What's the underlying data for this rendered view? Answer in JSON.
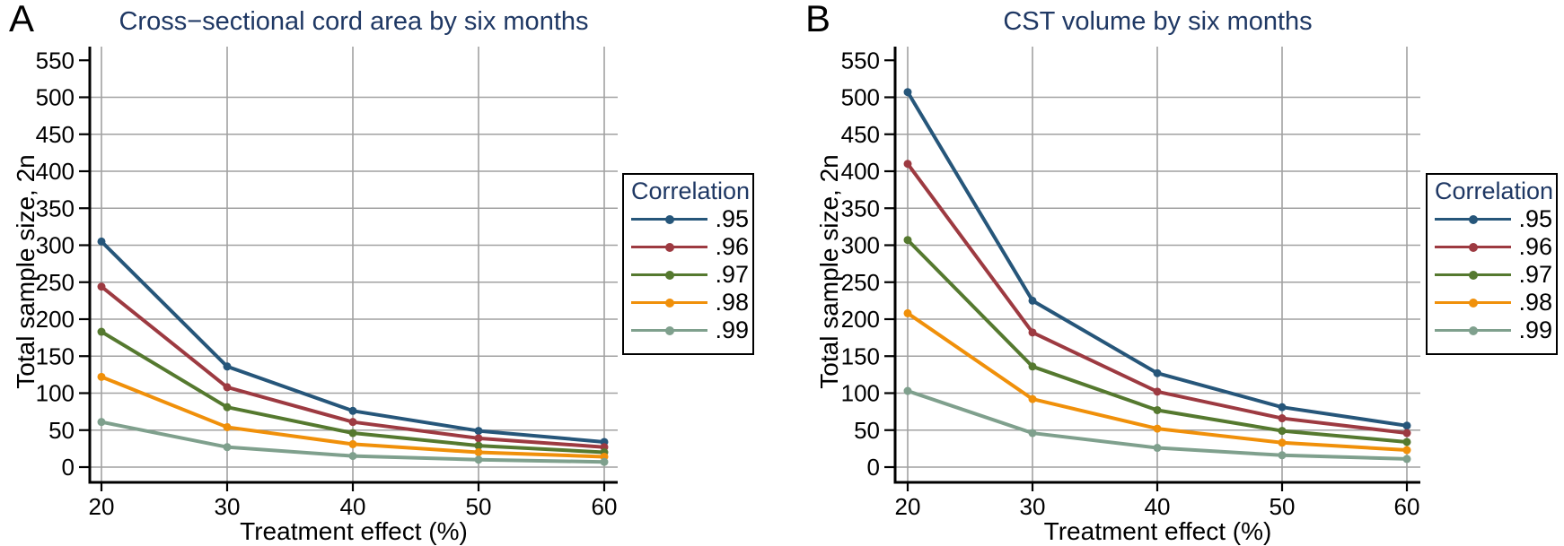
{
  "figure": {
    "background": "#ffffff"
  },
  "colors": {
    "title_navy": "#1f3864",
    "grid": "#a1a1a1",
    "axis": "#000000",
    "tick_label": "#000000"
  },
  "chart_data": [
    {
      "panel_label": "A",
      "type": "line",
      "title": "Cross−sectional cord area by six months",
      "xlabel": "Treatment effect (%)",
      "ylabel": "Total sample size, 2n",
      "x": [
        20,
        30,
        40,
        50,
        60
      ],
      "x_ticks": [
        "20",
        "30",
        "40",
        "50",
        "60"
      ],
      "y_ticks": [
        "0",
        "50",
        "100",
        "150",
        "200",
        "250",
        "300",
        "350",
        "400",
        "450",
        "500",
        "550"
      ],
      "xlim": [
        20,
        60
      ],
      "ylim": [
        0,
        568
      ],
      "grid": true,
      "legend": {
        "title": "Correlation",
        "position": "right-outside"
      },
      "series": [
        {
          "name": ".95",
          "color": "#26567a",
          "marker": "circle",
          "values": [
            305,
            136,
            76,
            49,
            34
          ]
        },
        {
          "name": ".96",
          "color": "#9d3a41",
          "marker": "circle",
          "values": [
            244,
            108,
            61,
            39,
            27
          ]
        },
        {
          "name": ".97",
          "color": "#55792f",
          "marker": "circle",
          "values": [
            183,
            81,
            46,
            29,
            20
          ]
        },
        {
          "name": ".98",
          "color": "#f0900a",
          "marker": "circle",
          "values": [
            122,
            54,
            31,
            20,
            14
          ]
        },
        {
          "name": ".99",
          "color": "#7fa08d",
          "marker": "circle",
          "values": [
            61,
            27,
            15,
            10,
            7
          ]
        }
      ]
    },
    {
      "panel_label": "B",
      "type": "line",
      "title": "CST volume by six months",
      "xlabel": "Treatment effect (%)",
      "ylabel": "Total sample size, 2n",
      "x": [
        20,
        30,
        40,
        50,
        60
      ],
      "x_ticks": [
        "20",
        "30",
        "40",
        "50",
        "60"
      ],
      "y_ticks": [
        "0",
        "50",
        "100",
        "150",
        "200",
        "250",
        "300",
        "350",
        "400",
        "450",
        "500",
        "550"
      ],
      "xlim": [
        20,
        60
      ],
      "ylim": [
        0,
        568
      ],
      "grid": true,
      "legend": {
        "title": "Correlation",
        "position": "right-outside"
      },
      "series": [
        {
          "name": ".95",
          "color": "#26567a",
          "marker": "circle",
          "values": [
            507,
            225,
            127,
            81,
            56
          ]
        },
        {
          "name": ".96",
          "color": "#9d3a41",
          "marker": "circle",
          "values": [
            410,
            182,
            102,
            66,
            46
          ]
        },
        {
          "name": ".97",
          "color": "#55792f",
          "marker": "circle",
          "values": [
            307,
            136,
            77,
            49,
            34
          ]
        },
        {
          "name": ".98",
          "color": "#f0900a",
          "marker": "circle",
          "values": [
            208,
            92,
            52,
            33,
            23
          ]
        },
        {
          "name": ".99",
          "color": "#7fa08d",
          "marker": "circle",
          "values": [
            103,
            46,
            26,
            16,
            11
          ]
        }
      ]
    }
  ]
}
